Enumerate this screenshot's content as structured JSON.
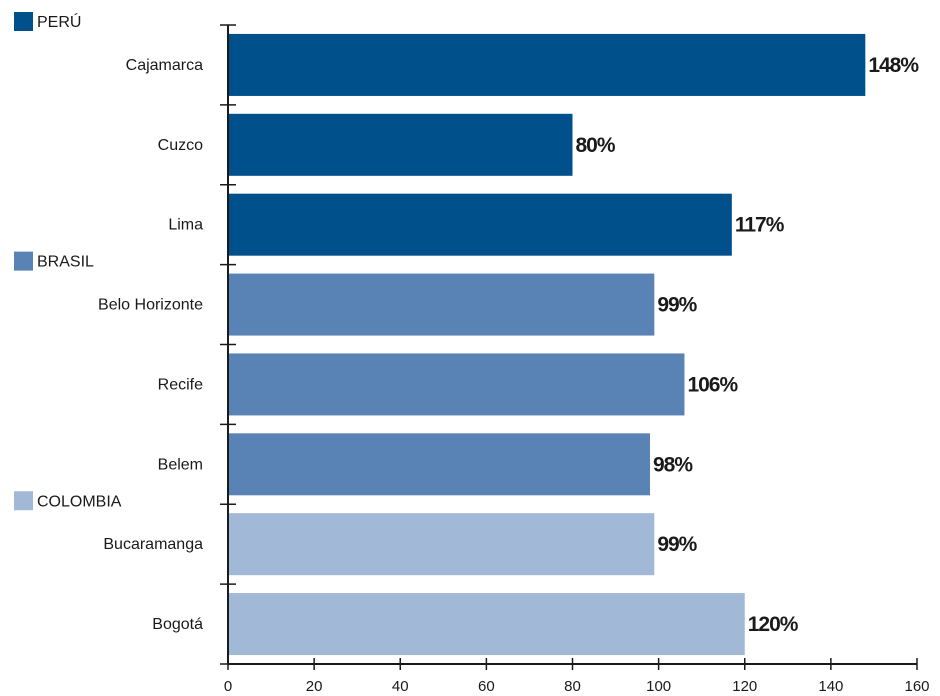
{
  "chart_data": {
    "type": "bar",
    "orientation": "horizontal",
    "categories": [
      "Cajamarca",
      "Cuzco",
      "Lima",
      "Belo Horizonte",
      "Recife",
      "Belem",
      "Bucaramanga",
      "Bogotá"
    ],
    "values": [
      148,
      80,
      117,
      99,
      106,
      98,
      99,
      120
    ],
    "value_labels": [
      "148%",
      "80%",
      "117%",
      "99%",
      "106%",
      "98%",
      "99%",
      "120%"
    ],
    "groups": [
      {
        "name": "PERÚ",
        "color": "#00508b",
        "categories": [
          "Cajamarca",
          "Cuzco",
          "Lima"
        ]
      },
      {
        "name": "BRASIL",
        "color": "#5a83b5",
        "categories": [
          "Belo Horizonte",
          "Recife",
          "Belem"
        ]
      },
      {
        "name": "COLOMBIA",
        "color": "#a1b8d6",
        "categories": [
          "Bucaramanga",
          "Bogotá"
        ]
      }
    ],
    "xlim": [
      0,
      160
    ],
    "xticks": [
      0,
      20,
      40,
      60,
      80,
      100,
      120,
      140,
      160
    ],
    "title": "",
    "xlabel": "",
    "ylabel": "",
    "grid": false
  }
}
